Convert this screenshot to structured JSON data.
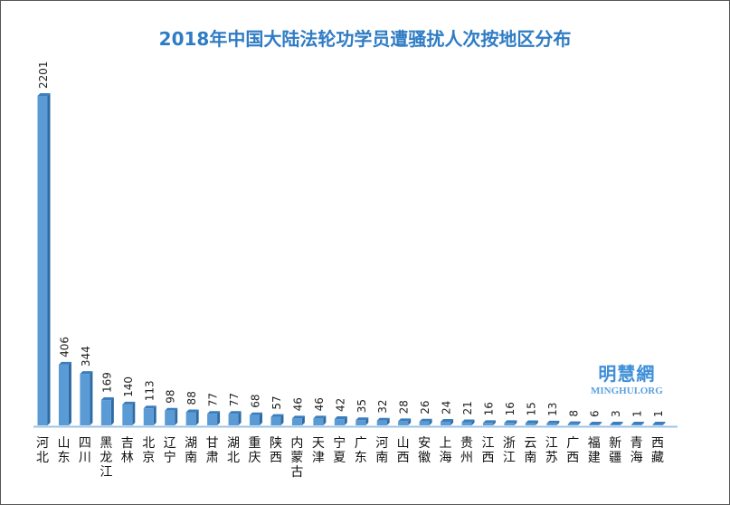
{
  "chart_data": {
    "type": "bar",
    "title": "2018年中国大陆法轮功学员遭骚扰人次按地区分布",
    "categories": [
      "河北",
      "山东",
      "四川",
      "黑龙江",
      "吉林",
      "北京",
      "辽宁",
      "湖南",
      "甘肃",
      "湖北",
      "重庆",
      "陕西",
      "内蒙古",
      "天津",
      "宁夏",
      "广东",
      "河南",
      "山西",
      "安徽",
      "上海",
      "贵州",
      "江西",
      "浙江",
      "云南",
      "江苏",
      "广西",
      "福建",
      "新疆",
      "青海",
      "西藏"
    ],
    "values": [
      2201,
      406,
      344,
      169,
      140,
      113,
      98,
      88,
      77,
      77,
      68,
      57,
      46,
      46,
      42,
      35,
      32,
      28,
      26,
      24,
      21,
      16,
      16,
      15,
      13,
      8,
      6,
      3,
      1,
      1
    ],
    "xlabel": "",
    "ylabel": "",
    "ylim": [
      0,
      2201
    ],
    "grid": false,
    "data_labels": true,
    "bar_color": "#5b9bd5"
  },
  "watermark": {
    "cn": "明慧網",
    "en": "MINGHUI.ORG"
  }
}
